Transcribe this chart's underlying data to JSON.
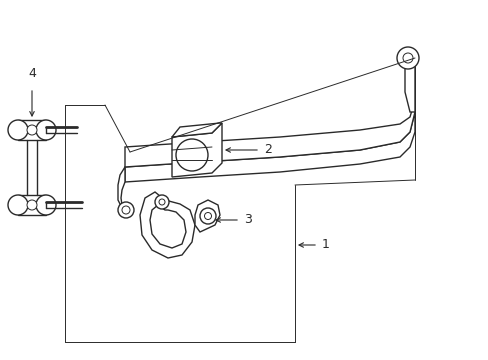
{
  "bg_color": "#ffffff",
  "line_color": "#2a2a2a",
  "lw": 1.0,
  "tlw": 0.7,
  "fig_width": 4.89,
  "fig_height": 3.6,
  "dpi": 100,
  "label_fontsize": 9
}
